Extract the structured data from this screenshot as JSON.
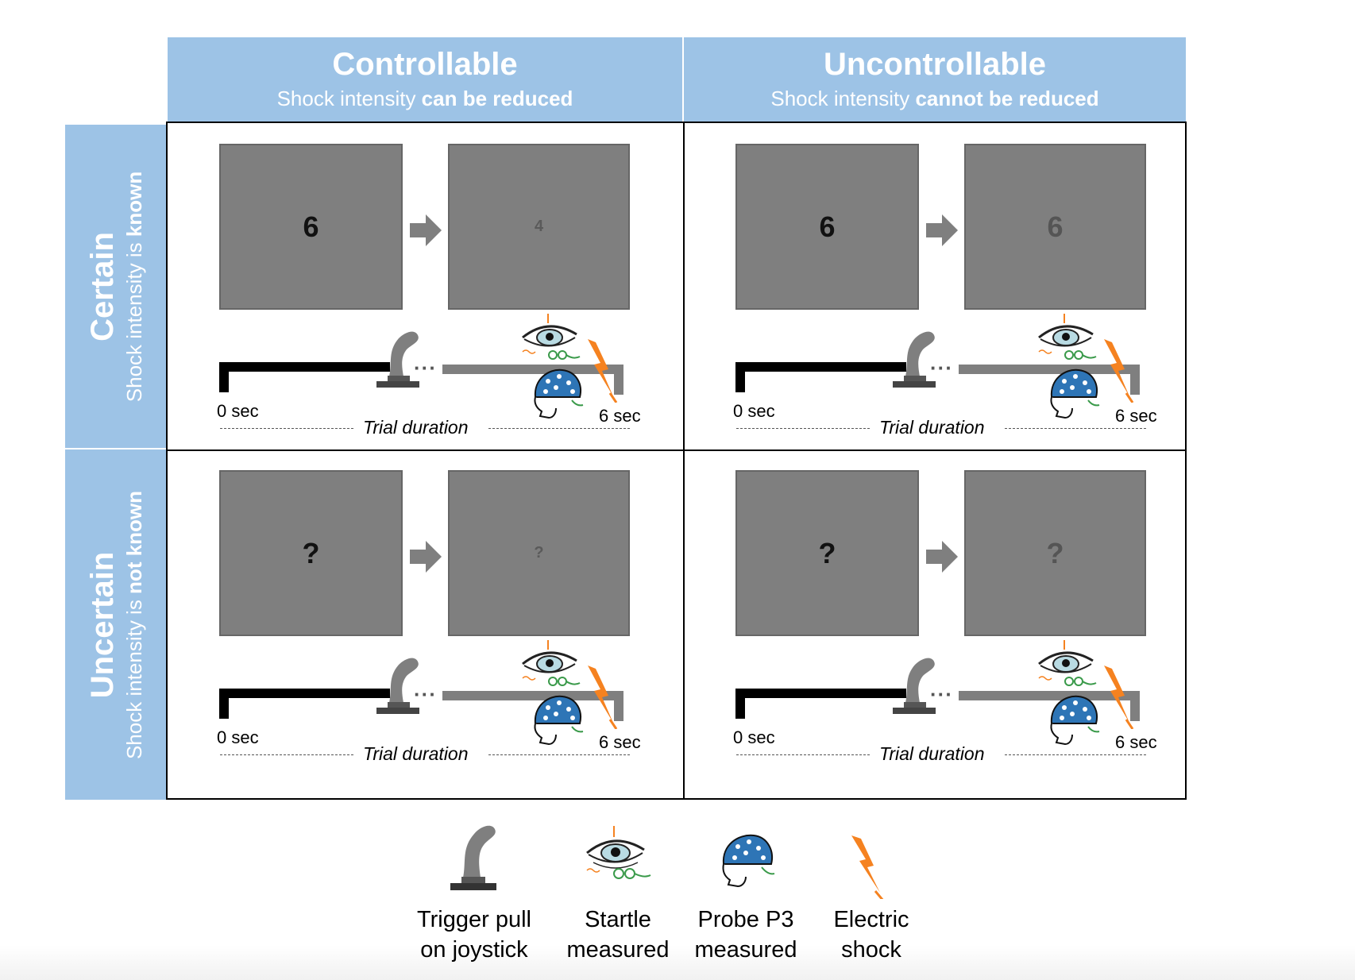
{
  "columns": [
    {
      "title": "Controllable",
      "sub_pre": "Shock intensity ",
      "sub_bold": "can be reduced"
    },
    {
      "title": "Uncontrollable",
      "sub_pre": "Shock intensity ",
      "sub_bold": "cannot be reduced"
    }
  ],
  "rows": [
    {
      "title": "Certain",
      "sub_pre": "Shock intensity is ",
      "sub_bold": "known"
    },
    {
      "title": "Uncertain",
      "sub_pre": "Shock intensity is ",
      "sub_bold": " not known"
    }
  ],
  "cells": [
    {
      "first": "6",
      "second": "4"
    },
    {
      "first": "6",
      "second": "6"
    },
    {
      "first": "?",
      "second": "?"
    },
    {
      "first": "?",
      "second": "?"
    }
  ],
  "timeline": {
    "start": "0 sec",
    "end": "6 sec",
    "duration": "Trial duration",
    "dots": "···"
  },
  "legend": [
    {
      "line1": "Trigger pull",
      "line2": "on joystick",
      "icon": "joystick-icon"
    },
    {
      "line1": "Startle",
      "line2": "measured",
      "icon": "eye-icon"
    },
    {
      "line1": "Probe P3",
      "line2": "measured",
      "icon": "eeg-cap-icon"
    },
    {
      "line1": "Electric",
      "line2": "shock",
      "icon": "lightning-bolt-icon"
    }
  ],
  "colors": {
    "header": "#9dc3e6",
    "screen": "#7f7f7f",
    "bolt": "#f58220",
    "cap": "#2e75b6"
  }
}
